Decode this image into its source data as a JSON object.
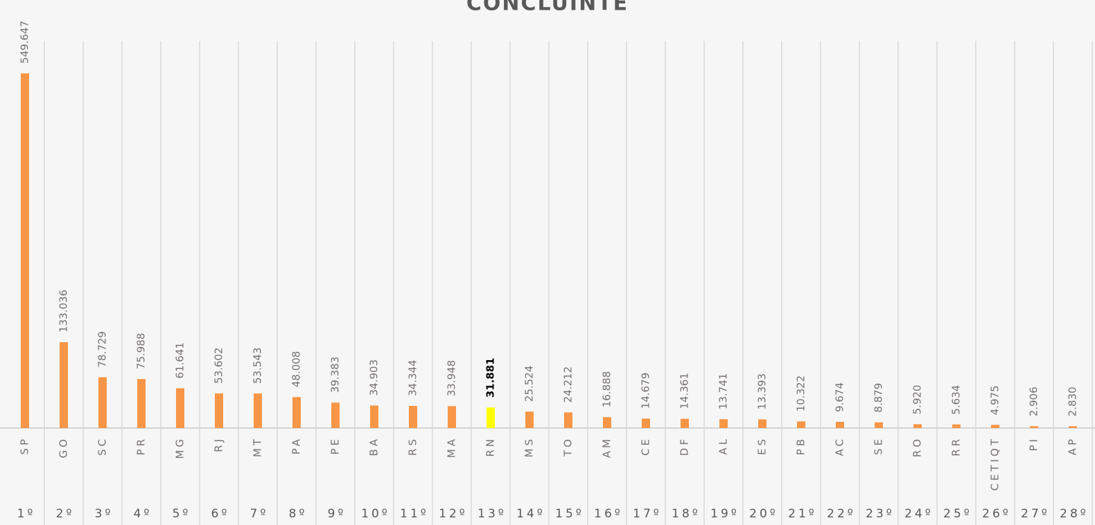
{
  "chart_data": {
    "type": "bar",
    "title": "CONCLUINTE",
    "categories": [
      "SP",
      "GO",
      "SC",
      "PR",
      "MG",
      "RJ",
      "MT",
      "PA",
      "PE",
      "BA",
      "RS",
      "MA",
      "RN",
      "MS",
      "TO",
      "AM",
      "CE",
      "DF",
      "AL",
      "ES",
      "PB",
      "AC",
      "SE",
      "RO",
      "RR",
      "CETIQT",
      "PI",
      "AP"
    ],
    "ranks": [
      "1º",
      "2º",
      "3º",
      "4º",
      "5º",
      "6º",
      "7º",
      "8º",
      "9º",
      "10º",
      "11º",
      "12º",
      "13º",
      "14º",
      "15º",
      "16º",
      "17º",
      "18º",
      "19º",
      "20º",
      "21º",
      "22º",
      "23º",
      "24º",
      "25º",
      "26º",
      "27º",
      "28º"
    ],
    "values": [
      549647,
      133036,
      78729,
      75988,
      61641,
      53602,
      53543,
      48008,
      39383,
      34903,
      34344,
      33948,
      31881,
      25524,
      24212,
      16888,
      14679,
      14361,
      13741,
      13393,
      10322,
      9674,
      8879,
      5920,
      5634,
      4975,
      2906,
      2830
    ],
    "value_labels": [
      "549.647",
      "133.036",
      "78.729",
      "75.988",
      "61.641",
      "53.602",
      "53.543",
      "48.008",
      "39.383",
      "34.903",
      "34.344",
      "33.948",
      "31.881",
      "25.524",
      "24.212",
      "16.888",
      "14.679",
      "14.361",
      "13.741",
      "13.393",
      "10.322",
      "9.674",
      "8.879",
      "5.920",
      "5.634",
      "4.975",
      "2.906",
      "2.830"
    ],
    "color": "#f79646",
    "colors": [
      "#f79646",
      "#f79646",
      "#f79646",
      "#f79646",
      "#f79646",
      "#f79646",
      "#f79646",
      "#f79646",
      "#f79646",
      "#f79646",
      "#f79646",
      "#f79646",
      "#ffff00",
      "#f79646",
      "#f79646",
      "#f79646",
      "#f79646",
      "#f79646",
      "#f79646",
      "#f79646",
      "#f79646",
      "#f79646",
      "#f79646",
      "#f79646",
      "#f79646",
      "#f79646",
      "#f79646",
      "#f79646"
    ],
    "ylim": [
      0,
      600000
    ]
  }
}
